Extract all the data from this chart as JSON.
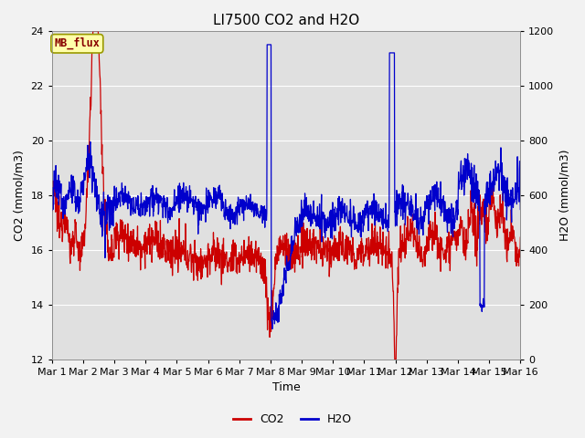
{
  "title": "LI7500 CO2 and H2O",
  "xlabel": "Time",
  "ylabel_left": "CO2 (mmol/m3)",
  "ylabel_right": "H2O (mmol/m3)",
  "ylim_left": [
    12,
    24
  ],
  "ylim_right": [
    0,
    1200
  ],
  "yticks_left": [
    12,
    14,
    16,
    18,
    20,
    22,
    24
  ],
  "yticks_right": [
    0,
    200,
    400,
    600,
    800,
    1000,
    1200
  ],
  "xtick_labels": [
    "Mar 1",
    "Mar 2",
    "Mar 3",
    "Mar 4",
    "Mar 5",
    "Mar 6",
    "Mar 7",
    "Mar 8",
    "Mar 9",
    "Mar 10",
    "Mar 11",
    "Mar 12",
    "Mar 13",
    "Mar 14",
    "Mar 15",
    "Mar 16"
  ],
  "color_co2": "#cc0000",
  "color_h2o": "#0000cc",
  "plot_bg_color": "#e0e0e0",
  "fig_bg_color": "#f2f2f2",
  "annotation_text": "MB_flux",
  "annotation_bg": "#ffffaa",
  "annotation_border": "#999900",
  "grid_color": "#ffffff",
  "title_fontsize": 11,
  "axis_fontsize": 9,
  "tick_fontsize": 8,
  "legend_fontsize": 9,
  "linewidth": 0.9
}
